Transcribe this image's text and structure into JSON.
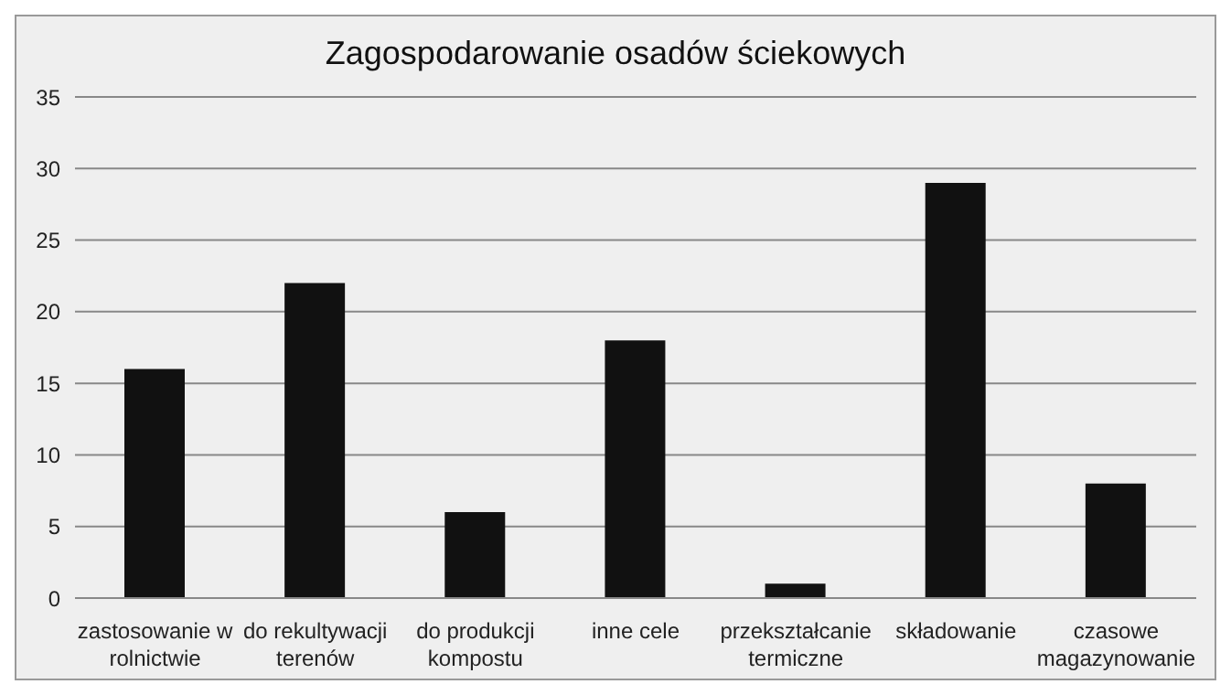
{
  "chart_data": {
    "type": "bar",
    "title": "Zagospodarowanie osadów ściekowych",
    "categories": [
      "zastosowanie w rolnictwie",
      "do rekultywacji terenów",
      "do produkcji kompostu",
      "inne cele",
      "przekształcanie termiczne",
      "składowanie",
      "czasowe magazynowanie"
    ],
    "values": [
      16,
      22,
      6,
      18,
      1,
      29,
      8
    ],
    "color": "#111111",
    "ylim": [
      0,
      35
    ],
    "yticks": [
      0,
      5,
      10,
      15,
      20,
      25,
      30,
      35
    ],
    "grid": "y"
  }
}
